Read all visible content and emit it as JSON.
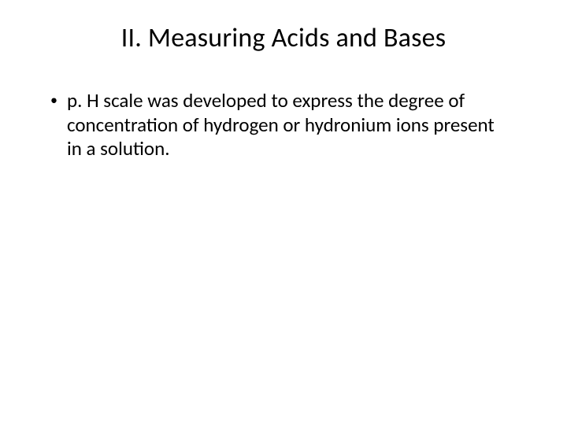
{
  "slide": {
    "title": "II. Measuring Acids and Bases",
    "bullets": [
      {
        "marker": "•",
        "text": "p. H scale was developed to express the degree of concentration of hydrogen or hydronium ions present in a solution."
      }
    ],
    "colors": {
      "background": "#ffffff",
      "text": "#000000"
    },
    "typography": {
      "title_fontsize": 34,
      "body_fontsize": 25,
      "font_family": "Calibri"
    }
  }
}
